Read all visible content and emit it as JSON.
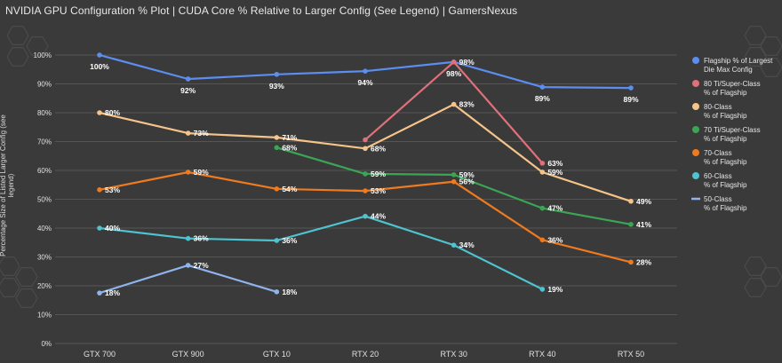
{
  "header": {
    "title": "NVIDIA GPU Configuration % Plot | CUDA Core % Relative to Larger Config (See Legend) | GamersNexus"
  },
  "chart_data": {
    "type": "line",
    "title": "NVIDIA GPU Configuration % Plot | CUDA Core % Relative to Larger Config (See Legend) | GamersNexus",
    "xlabel": "",
    "ylabel": "Percentage Size of Listed Larger Config (see legend)",
    "ylim": [
      0,
      100
    ],
    "y_ticks": [
      0,
      10,
      20,
      30,
      40,
      50,
      60,
      70,
      80,
      90,
      100
    ],
    "y_tick_labels": [
      "0%",
      "10%",
      "20%",
      "30%",
      "40%",
      "50%",
      "60%",
      "70%",
      "80%",
      "90%",
      "100%"
    ],
    "categories": [
      "GTX 700",
      "GTX 900",
      "GTX 10",
      "RTX 20",
      "RTX 30",
      "RTX 40",
      "RTX 50"
    ],
    "grid": true,
    "legend_position": "right",
    "series": [
      {
        "name": "Flagship % of Largest Die Max Config",
        "color": "#5b8ef0",
        "values": [
          100,
          91.7,
          93.3,
          94.4,
          97.6,
          88.9,
          88.6
        ],
        "labels": [
          "100%",
          "92%",
          "93%",
          "94%",
          "98%",
          "89%",
          "89%"
        ],
        "label_pos": [
          "below",
          "below",
          "below",
          "below",
          "below",
          "below",
          "below"
        ]
      },
      {
        "name": "80 Ti/Super-Class % of Flagship",
        "color": "#e0707a",
        "values": [
          null,
          null,
          null,
          70.6,
          97.6,
          62.5,
          null
        ],
        "labels": [
          "",
          "",
          "",
          "",
          "98%",
          "63%",
          ""
        ],
        "label_pos": [
          "right",
          "right",
          "right",
          "right",
          "right",
          "right",
          "right"
        ]
      },
      {
        "name": "80-Class % of Flagship",
        "color": "#f5c489",
        "values": [
          80,
          72.9,
          71.4,
          67.6,
          82.9,
          59.4,
          49.3
        ],
        "labels": [
          "80%",
          "73%",
          "71%",
          "68%",
          "83%",
          "59%",
          "49%"
        ],
        "label_pos": [
          "right",
          "right",
          "right",
          "right",
          "right",
          "right",
          "right"
        ]
      },
      {
        "name": "70 Ti/Super-Class % of Flagship",
        "color": "#3aa655",
        "values": [
          null,
          null,
          67.9,
          58.8,
          58.5,
          46.9,
          41.3
        ],
        "labels": [
          "",
          "",
          "68%",
          "59%",
          "59%",
          "47%",
          "41%"
        ],
        "label_pos": [
          "right",
          "right",
          "right",
          "right",
          "right",
          "right",
          "right"
        ]
      },
      {
        "name": "70-Class % of Flagship",
        "color": "#f07a1e",
        "values": [
          53.3,
          59.4,
          53.6,
          52.9,
          56.1,
          35.9,
          28.2
        ],
        "labels": [
          "53%",
          "59%",
          "54%",
          "53%",
          "56%",
          "36%",
          "28%"
        ],
        "label_pos": [
          "right",
          "right",
          "right",
          "right",
          "right",
          "right",
          "right"
        ]
      },
      {
        "name": "60-Class % of Flagship",
        "color": "#4fc3d0",
        "values": [
          40,
          36.4,
          35.7,
          44.1,
          34.1,
          18.8,
          null
        ],
        "labels": [
          "40%",
          "36%",
          "36%",
          "44%",
          "34%",
          "19%",
          ""
        ],
        "label_pos": [
          "right",
          "right",
          "right",
          "right",
          "right",
          "right",
          "right"
        ]
      },
      {
        "name": "50-Class % of Flagship",
        "color": "#8fb4ec",
        "values": [
          17.5,
          27.1,
          17.9,
          null,
          null,
          null,
          null
        ],
        "labels": [
          "18%",
          "27%",
          "18%",
          "",
          "",
          "",
          ""
        ],
        "label_pos": [
          "right",
          "right",
          "right",
          "right",
          "right",
          "right",
          "right"
        ]
      }
    ],
    "legend": [
      {
        "line1": "Flagship % of Largest",
        "line2": "Die Max Config",
        "color": "#5b8ef0",
        "marker": "dot"
      },
      {
        "line1": "80 Ti/Super-Class",
        "line2": "% of Flagship",
        "color": "#e0707a",
        "marker": "dot"
      },
      {
        "line1": "80-Class",
        "line2": "% of Flagship",
        "color": "#f5c489",
        "marker": "dot"
      },
      {
        "line1": "70 Ti/Super-Class",
        "line2": "% of Flagship",
        "color": "#3aa655",
        "marker": "dot"
      },
      {
        "line1": "70-Class",
        "line2": "% of Flagship",
        "color": "#f07a1e",
        "marker": "dot"
      },
      {
        "line1": "60-Class",
        "line2": "% of Flagship",
        "color": "#4fc3d0",
        "marker": "dot"
      },
      {
        "line1": "50-Class",
        "line2": "% of Flagship",
        "color": "#8fb4ec",
        "marker": "line"
      }
    ]
  }
}
